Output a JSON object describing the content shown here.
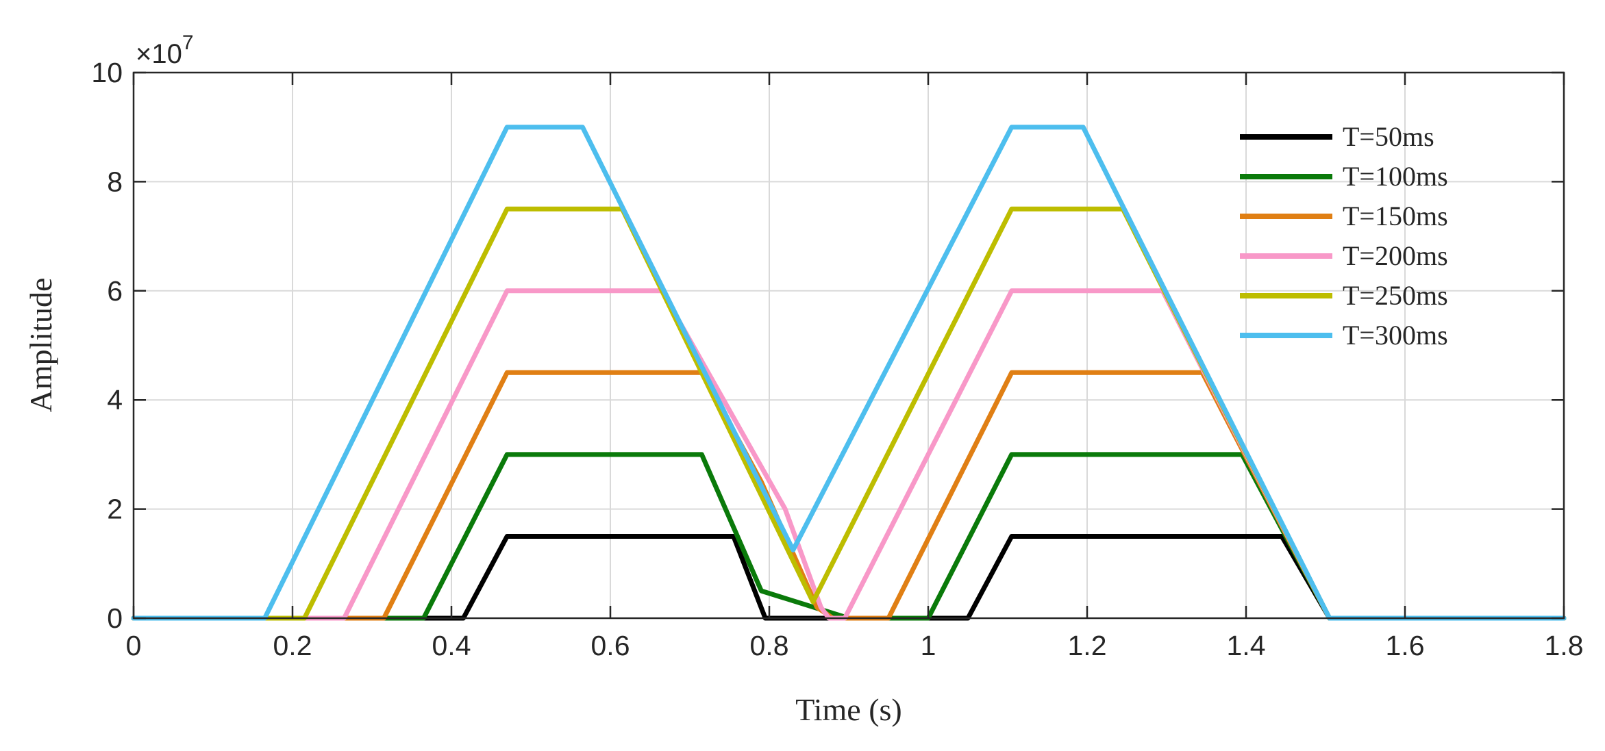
{
  "chart_data": {
    "type": "line",
    "xlabel": "Time (s)",
    "ylabel": "Amplitude",
    "xlim": [
      0,
      1.8
    ],
    "ylim": [
      0,
      10
    ],
    "xticks": [
      0,
      0.2,
      0.4,
      0.6,
      0.8,
      1.0,
      1.2,
      1.4,
      1.6,
      1.8
    ],
    "xtick_labels": [
      "0",
      "0.2",
      "0.4",
      "0.6",
      "0.8",
      "1",
      "1.2",
      "1.4",
      "1.6",
      "1.8"
    ],
    "yticks": [
      0,
      2,
      4,
      6,
      8,
      10
    ],
    "ytick_labels": [
      "0",
      "2",
      "4",
      "6",
      "8",
      "10"
    ],
    "y_exponent_base": "×10",
    "y_exponent_power": "7",
    "grid": true,
    "legend_position": "top-right",
    "series": [
      {
        "name": "T=50ms",
        "color": "#000000",
        "x": [
          0,
          0.415,
          0.47,
          0.755,
          0.795,
          0.94,
          1.05,
          1.105,
          1.445,
          1.505,
          1.8
        ],
        "y": [
          0,
          0,
          1.5,
          1.5,
          0,
          0,
          0,
          1.5,
          1.5,
          0,
          0
        ]
      },
      {
        "name": "T=100ms",
        "color": "#0a7a0a",
        "x": [
          0,
          0.365,
          0.47,
          0.715,
          0.79,
          0.9,
          1.0,
          1.105,
          1.395,
          1.505,
          1.8
        ],
        "y": [
          0,
          0,
          3.0,
          3.0,
          0.5,
          0,
          0,
          3.0,
          3.0,
          0,
          0
        ]
      },
      {
        "name": "T=150ms",
        "color": "#e07f14",
        "x": [
          0,
          0.315,
          0.47,
          0.715,
          0.79,
          0.86,
          0.88,
          0.95,
          1.105,
          1.345,
          1.505,
          1.8
        ],
        "y": [
          0,
          0,
          4.5,
          4.5,
          2.5,
          0.2,
          0,
          0,
          4.5,
          4.5,
          0,
          0
        ]
      },
      {
        "name": "T=200ms",
        "color": "#f898c8",
        "x": [
          0,
          0.265,
          0.47,
          0.665,
          0.82,
          0.865,
          0.875,
          0.895,
          1.105,
          1.295,
          1.505,
          1.8
        ],
        "y": [
          0,
          0,
          6.0,
          6.0,
          2.0,
          0.2,
          0,
          0,
          6.0,
          6.0,
          0,
          0
        ]
      },
      {
        "name": "T=250ms",
        "color": "#bdbd00",
        "x": [
          0,
          0.215,
          0.47,
          0.615,
          0.855,
          1.105,
          1.245,
          1.505,
          1.8
        ],
        "y": [
          0,
          0,
          7.5,
          7.5,
          0.3,
          7.5,
          7.5,
          0,
          0
        ]
      },
      {
        "name": "T=300ms",
        "color": "#4dbeee",
        "x": [
          0,
          0.165,
          0.47,
          0.565,
          0.83,
          1.105,
          1.195,
          1.505,
          1.8
        ],
        "y": [
          0,
          0,
          9.0,
          9.0,
          1.25,
          9.0,
          9.0,
          0,
          0
        ]
      }
    ]
  }
}
